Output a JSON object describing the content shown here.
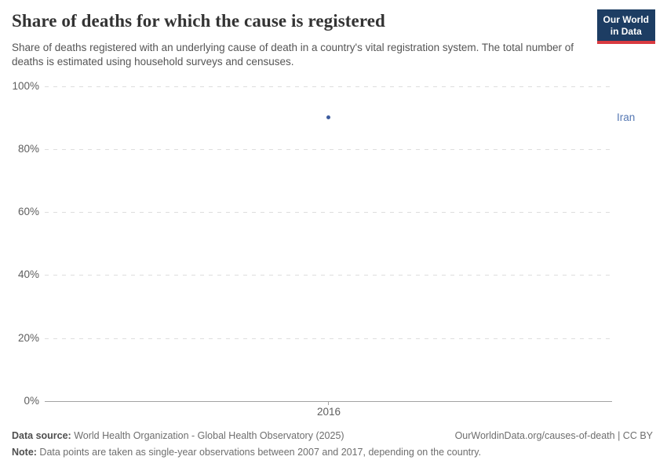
{
  "header": {
    "title": "Share of deaths for which the cause is registered",
    "subtitle": "Share of deaths registered with an underlying cause of death in a country's vital registration system. The total number of deaths is estimated using household surveys and censuses.",
    "logo": {
      "line1": "Our World",
      "line2": "in Data"
    }
  },
  "chart_data": {
    "type": "scatter",
    "title": "Share of deaths for which the cause is registered",
    "series": [
      {
        "name": "Iran",
        "points": [
          {
            "x": 2016,
            "y": 90
          }
        ]
      }
    ],
    "xticks": [
      "2016"
    ],
    "yticks": [
      "0%",
      "20%",
      "40%",
      "60%",
      "80%",
      "100%"
    ],
    "ylim": [
      0,
      100
    ],
    "grid": "horizontal-dashed",
    "legend_position": "entity label right of plot",
    "point_color": "#3d5c9e",
    "entity_label_color": "#5477b3"
  },
  "footer": {
    "source_label": "Data source:",
    "source_text": " World Health Organization - Global Health Observatory (2025)",
    "attribution": "OurWorldinData.org/causes-of-death | CC BY",
    "note_label": "Note:",
    "note_text": " Data points are taken as single-year observations between 2007 and 2017, depending on the country."
  }
}
